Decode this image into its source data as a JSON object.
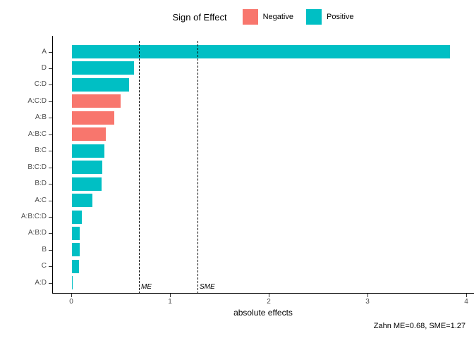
{
  "chart_data": {
    "type": "bar",
    "orientation": "horizontal",
    "legend": {
      "title": "Sign of Effect",
      "position": "top",
      "entries": [
        {
          "label": "Negative",
          "color": "#F8766D"
        },
        {
          "label": "Positive",
          "color": "#00BFC4"
        }
      ]
    },
    "categories": [
      "A",
      "D",
      "C:D",
      "A:C:D",
      "A:B",
      "A:B:C",
      "B:C",
      "B:C:D",
      "B:D",
      "A:C",
      "A:B:C:D",
      "A:B:D",
      "B",
      "C",
      "A:D"
    ],
    "values": [
      3.83,
      0.63,
      0.58,
      0.49,
      0.43,
      0.34,
      0.33,
      0.31,
      0.3,
      0.21,
      0.1,
      0.08,
      0.08,
      0.07,
      0.005
    ],
    "signs": [
      "Positive",
      "Positive",
      "Positive",
      "Negative",
      "Negative",
      "Negative",
      "Positive",
      "Positive",
      "Positive",
      "Positive",
      "Positive",
      "Positive",
      "Positive",
      "Positive",
      "Positive"
    ],
    "colors": {
      "negative": "#F8766D",
      "positive": "#00BFC4"
    },
    "xlabel": "absolute effects",
    "xlim": [
      0,
      4
    ],
    "xticks": [
      0,
      1,
      2,
      3,
      4
    ],
    "grid": "off",
    "reference_lines": [
      {
        "label": "ME",
        "value": 0.68
      },
      {
        "label": "SME",
        "value": 1.27
      }
    ],
    "caption": "Zahn ME=0.68, SME=1.27"
  }
}
